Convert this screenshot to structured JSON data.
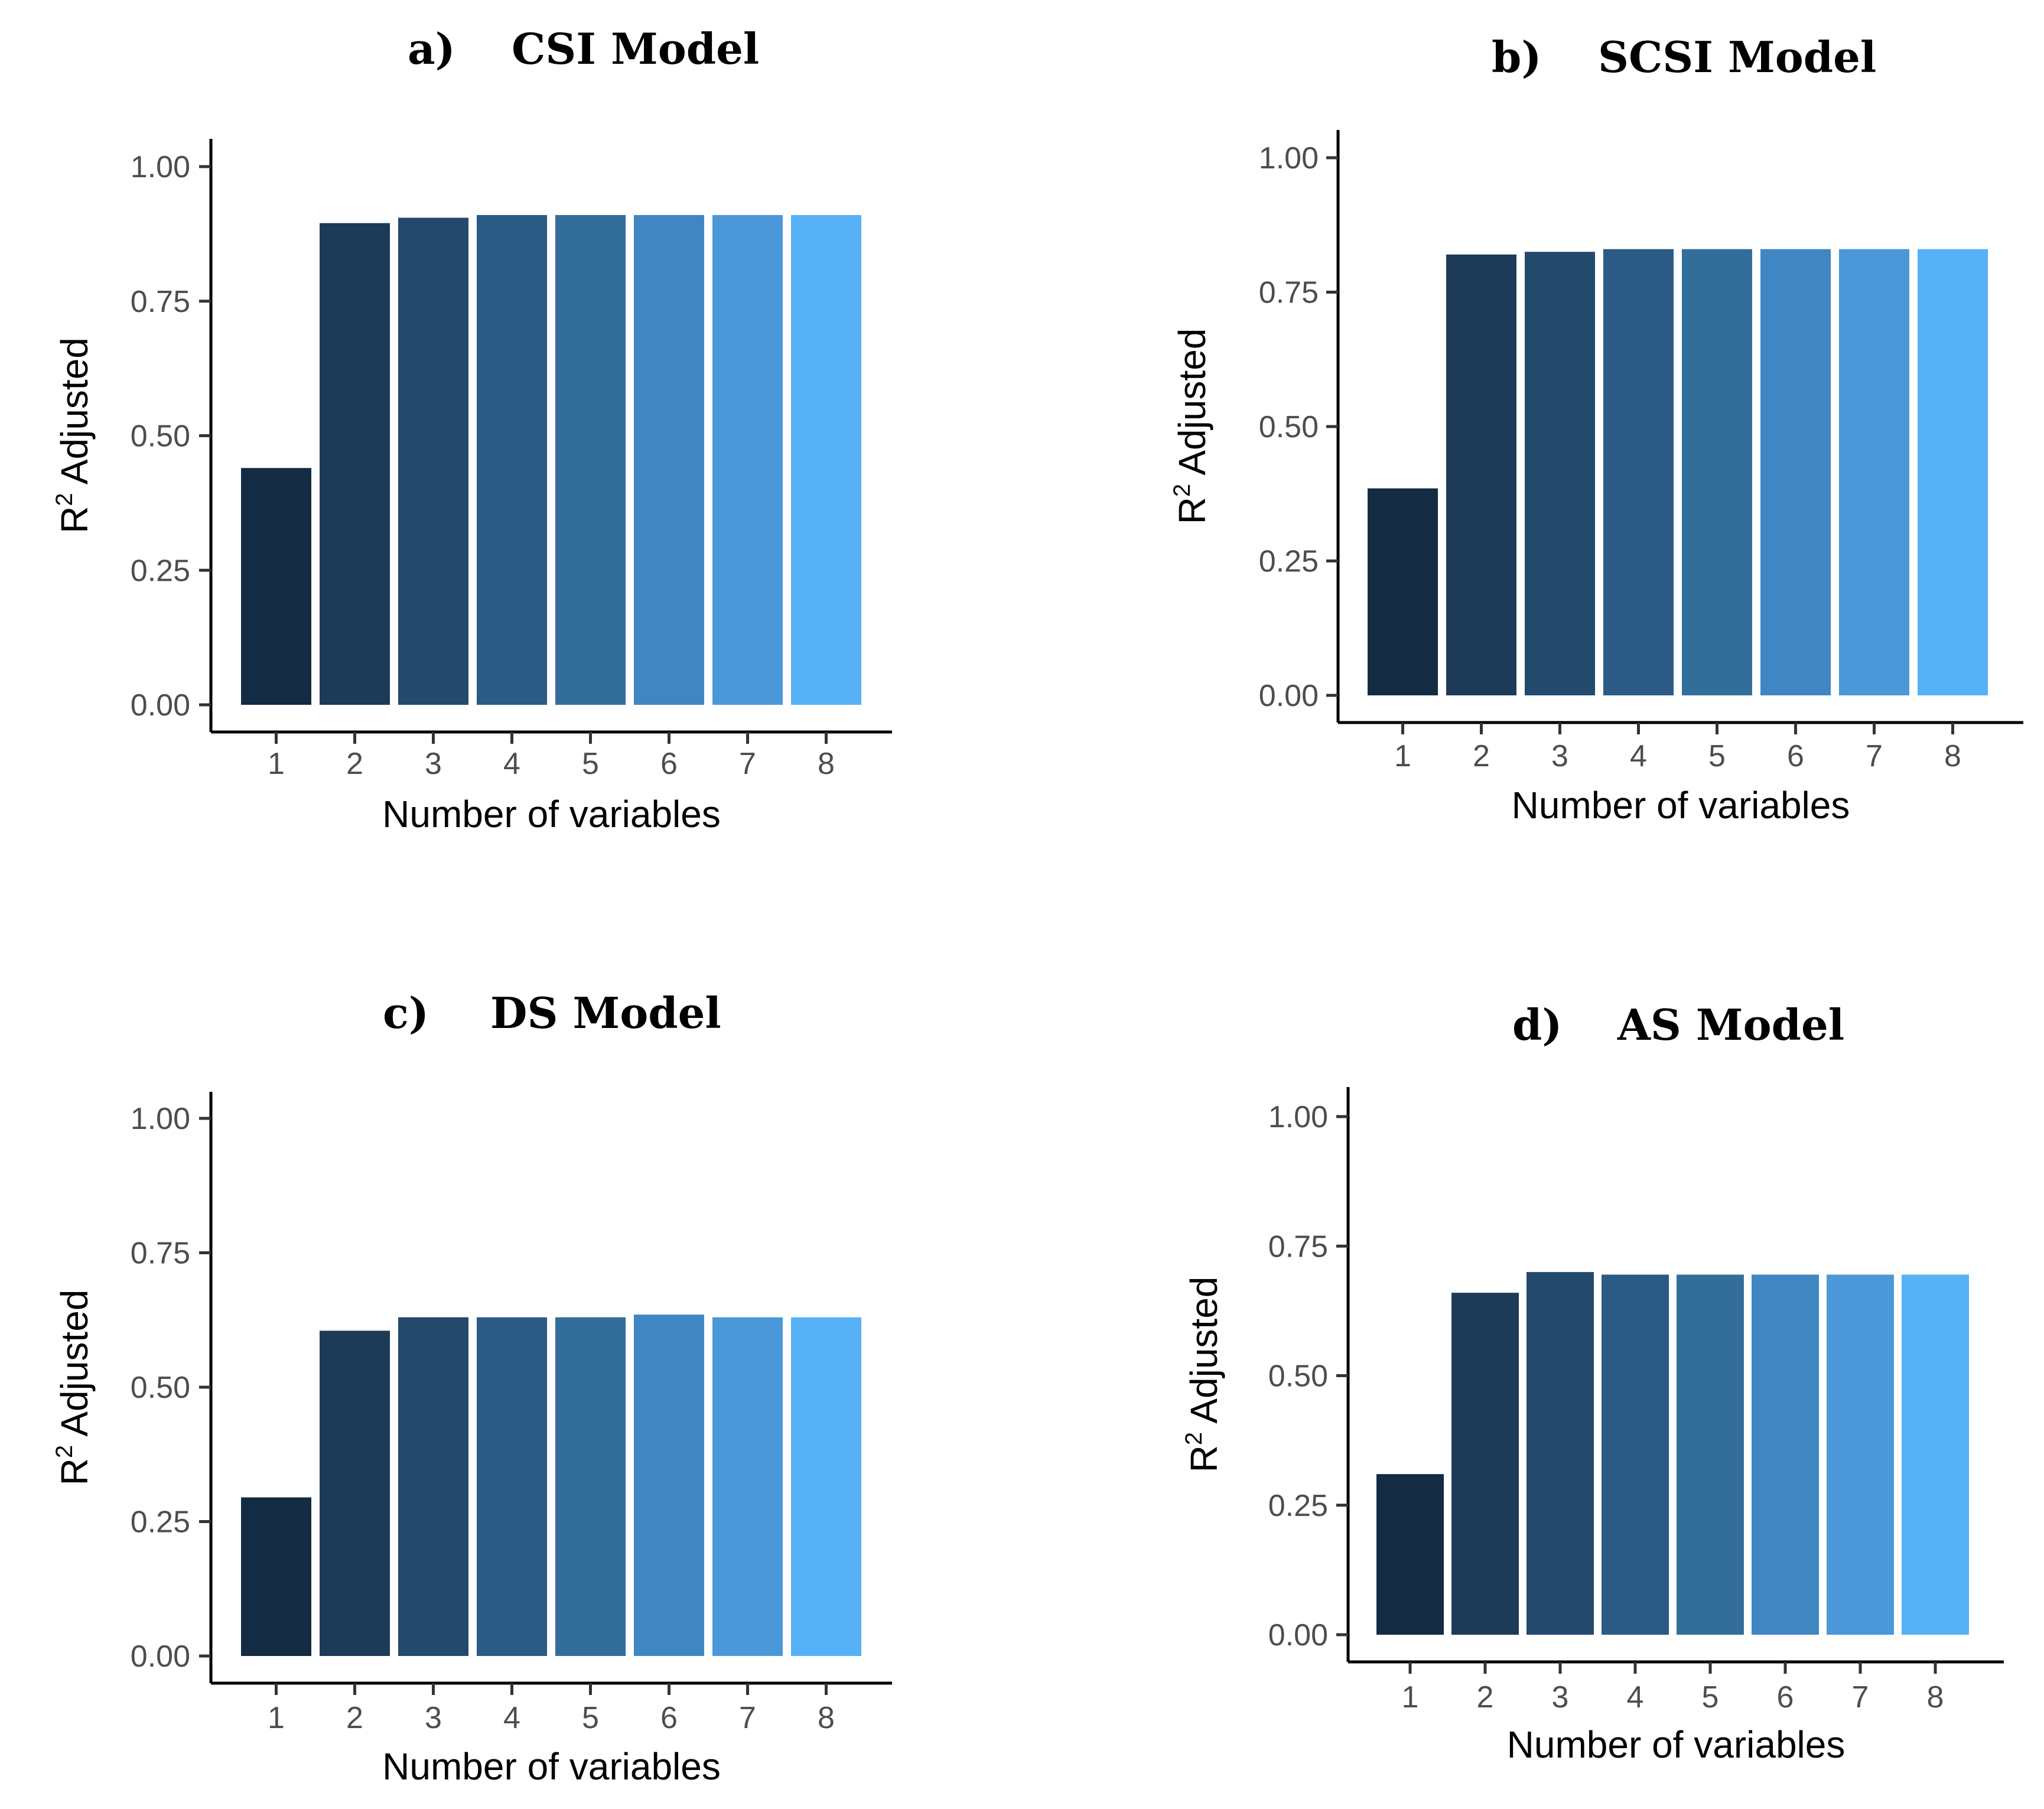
{
  "colors": {
    "background": "#ffffff",
    "bar_palette": [
      "#132b43",
      "#1d3a58",
      "#234a6c",
      "#2b5b84",
      "#336e9b",
      "#3f86c2",
      "#4a98d8",
      "#56b1f7"
    ],
    "axis": "#000000",
    "tick_text": "#4d4d4d"
  },
  "chart_data": [
    {
      "type": "bar",
      "panel_letter": "a)",
      "title": "CSI Model",
      "xlabel": "Number of variables",
      "ylabel_base": "R",
      "ylabel_superscript": "2",
      "ylabel_rest": " Adjusted",
      "categories": [
        "1",
        "2",
        "3",
        "4",
        "5",
        "6",
        "7",
        "8"
      ],
      "values": [
        0.44,
        0.895,
        0.905,
        0.91,
        0.91,
        0.91,
        0.91,
        0.91
      ],
      "yticks": [
        "0.00",
        "0.25",
        "0.50",
        "0.75",
        "1.00"
      ],
      "ylim": [
        0,
        1.0
      ]
    },
    {
      "type": "bar",
      "panel_letter": "b)",
      "title": "SCSI Model",
      "xlabel": "Number of variables",
      "ylabel_base": "R",
      "ylabel_superscript": "2",
      "ylabel_rest": " Adjusted",
      "categories": [
        "1",
        "2",
        "3",
        "4",
        "5",
        "6",
        "7",
        "8"
      ],
      "values": [
        0.385,
        0.82,
        0.825,
        0.83,
        0.83,
        0.83,
        0.83,
        0.83
      ],
      "yticks": [
        "0.00",
        "0.25",
        "0.50",
        "0.75",
        "1.00"
      ],
      "ylim": [
        0,
        1.0
      ]
    },
    {
      "type": "bar",
      "panel_letter": "c)",
      "title": "DS Model",
      "xlabel": "Number of variables",
      "ylabel_base": "R",
      "ylabel_superscript": "2",
      "ylabel_rest": " Adjusted",
      "categories": [
        "1",
        "2",
        "3",
        "4",
        "5",
        "6",
        "7",
        "8"
      ],
      "values": [
        0.295,
        0.605,
        0.63,
        0.63,
        0.63,
        0.635,
        0.63,
        0.63
      ],
      "yticks": [
        "0.00",
        "0.25",
        "0.50",
        "0.75",
        "1.00"
      ],
      "ylim": [
        0,
        1.0
      ]
    },
    {
      "type": "bar",
      "panel_letter": "d)",
      "title": "AS Model",
      "xlabel": "Number of variables",
      "ylabel_base": "R",
      "ylabel_superscript": "2",
      "ylabel_rest": " Adjusted",
      "categories": [
        "1",
        "2",
        "3",
        "4",
        "5",
        "6",
        "7",
        "8"
      ],
      "values": [
        0.31,
        0.66,
        0.7,
        0.695,
        0.695,
        0.695,
        0.695,
        0.695
      ],
      "yticks": [
        "0.00",
        "0.25",
        "0.50",
        "0.75",
        "1.00"
      ],
      "ylim": [
        0,
        1.0
      ]
    }
  ]
}
